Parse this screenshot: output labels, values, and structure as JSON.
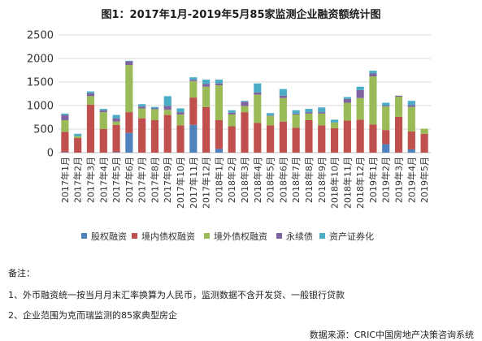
{
  "chart_data": {
    "type": "bar",
    "stacked": true,
    "title": "图1：2017年1月-2019年5月85家监测企业融资额统计图",
    "xlabel": "",
    "ylabel": "",
    "ylim": [
      0,
      2500
    ],
    "yticks": [
      "0",
      "500",
      "1000",
      "1500",
      "2000",
      "2500"
    ],
    "grid": true,
    "legend_position": "bottom",
    "categories": [
      "2017年1月",
      "2017年2月",
      "2017年3月",
      "2017年4月",
      "2017年5月",
      "2017年6月",
      "2017年7月",
      "2017年8月",
      "2017年9月",
      "2017年10月",
      "2017年11月",
      "2017年12月",
      "2018年1月",
      "2018年2月",
      "2018年3月",
      "2018年4月",
      "2018年5月",
      "2018年6月",
      "2018年7月",
      "2018年8月",
      "2018年9月",
      "2018年10月",
      "2018年11月",
      "2018年12月",
      "2019年1月",
      "2019年2月",
      "2019年3月",
      "2019年4月",
      "2019年5月"
    ],
    "series": [
      {
        "name": "股权融资",
        "color": "#4f81bd",
        "values": [
          10,
          0,
          0,
          0,
          10,
          420,
          0,
          0,
          0,
          0,
          590,
          0,
          80,
          0,
          0,
          0,
          0,
          0,
          0,
          0,
          0,
          0,
          0,
          0,
          0,
          180,
          0,
          70,
          0
        ]
      },
      {
        "name": "境内债权融资",
        "color": "#c0504d",
        "values": [
          430,
          310,
          1020,
          500,
          580,
          440,
          730,
          690,
          800,
          580,
          580,
          970,
          610,
          560,
          860,
          630,
          580,
          660,
          530,
          690,
          580,
          520,
          680,
          700,
          600,
          300,
          760,
          380,
          400
        ]
      },
      {
        "name": "境外债权融资",
        "color": "#9bbb59",
        "values": [
          250,
          40,
          180,
          360,
          70,
          1000,
          210,
          230,
          110,
          230,
          350,
          430,
          740,
          250,
          130,
          600,
          200,
          500,
          280,
          140,
          250,
          120,
          380,
          460,
          1020,
          500,
          430,
          520,
          110
        ]
      },
      {
        "name": "永续债",
        "color": "#8064a2",
        "values": [
          110,
          0,
          60,
          40,
          70,
          80,
          40,
          20,
          80,
          50,
          30,
          60,
          40,
          40,
          90,
          50,
          10,
          50,
          20,
          30,
          30,
          0,
          80,
          170,
          60,
          20,
          20,
          40,
          0
        ]
      },
      {
        "name": "资产证券化",
        "color": "#4bacc6",
        "values": [
          30,
          50,
          40,
          30,
          70,
          10,
          50,
          30,
          210,
          80,
          50,
          90,
          80,
          50,
          20,
          190,
          50,
          140,
          70,
          70,
          100,
          60,
          40,
          70,
          60,
          60,
          0,
          90,
          0
        ]
      }
    ]
  },
  "notes": {
    "heading": "备注：",
    "item_1": "1、外币融资统一按当月月末汇率换算为人民币，监测数据不含开发贷、一般银行贷款",
    "item_2": "2、企业范围为克而瑞监测的85家典型房企"
  },
  "source": "数据来源：CRIC中国房地产决策咨询系统"
}
